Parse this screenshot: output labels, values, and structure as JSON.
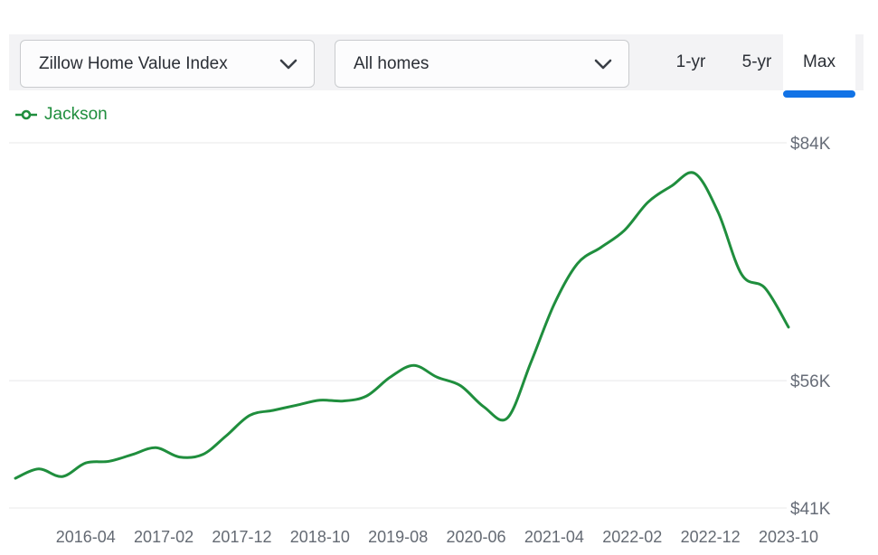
{
  "toolbar": {
    "metric_dropdown": {
      "value": "Zillow Home Value Index"
    },
    "home_type_dropdown": {
      "value": "All homes"
    },
    "range_tabs": [
      {
        "label": "1-yr",
        "active": false
      },
      {
        "label": "5-yr",
        "active": false
      },
      {
        "label": "Max",
        "active": true
      }
    ]
  },
  "legend": {
    "label": "Jackson",
    "color": "#1f8e3d"
  },
  "colors": {
    "line_green": "#1f8e3d",
    "active_tab_blue": "#1273e6",
    "toolbar_gray": "#f3f3f5",
    "tick_gray": "#676d78",
    "gridline_gray": "#e8e8ea"
  },
  "chart_data": {
    "type": "line",
    "title": "Zillow Home Value Index - All homes - Max range",
    "xlabel": "",
    "ylabel": "",
    "grid": "horizontal-only",
    "legend_position": "top-left",
    "x_start": "2015-07",
    "x_end": "2023-10",
    "ylim": [
      41000,
      84000
    ],
    "y_ticks": [
      {
        "label": "$84K",
        "value": 84000
      },
      {
        "label": "$56K",
        "value": 56000
      },
      {
        "label": "$41K",
        "value": 41000
      }
    ],
    "x_ticks": [
      "2016-04",
      "2017-02",
      "2017-12",
      "2018-10",
      "2019-08",
      "2020-06",
      "2021-04",
      "2022-02",
      "2022-12",
      "2023-10"
    ],
    "series": [
      {
        "name": "Jackson",
        "color": "#1f8e3d",
        "dates": [
          "2015-07",
          "2015-10",
          "2016-01",
          "2016-04",
          "2016-07",
          "2016-10",
          "2017-01",
          "2017-04",
          "2017-07",
          "2017-10",
          "2018-01",
          "2018-04",
          "2018-07",
          "2018-10",
          "2019-01",
          "2019-04",
          "2019-07",
          "2019-10",
          "2020-01",
          "2020-04",
          "2020-07",
          "2020-10",
          "2021-01",
          "2021-04",
          "2021-07",
          "2021-10",
          "2022-01",
          "2022-04",
          "2022-07",
          "2022-10",
          "2023-01",
          "2023-04",
          "2023-07",
          "2023-10"
        ],
        "values": [
          44500,
          45600,
          44700,
          46300,
          46500,
          47300,
          48100,
          47000,
          47300,
          49500,
          51900,
          52500,
          53100,
          53700,
          53600,
          54200,
          56400,
          57800,
          56400,
          55400,
          52900,
          51600,
          58100,
          65000,
          69800,
          71700,
          73700,
          77000,
          78900,
          80400,
          75800,
          68500,
          66900,
          62300
        ]
      }
    ]
  }
}
